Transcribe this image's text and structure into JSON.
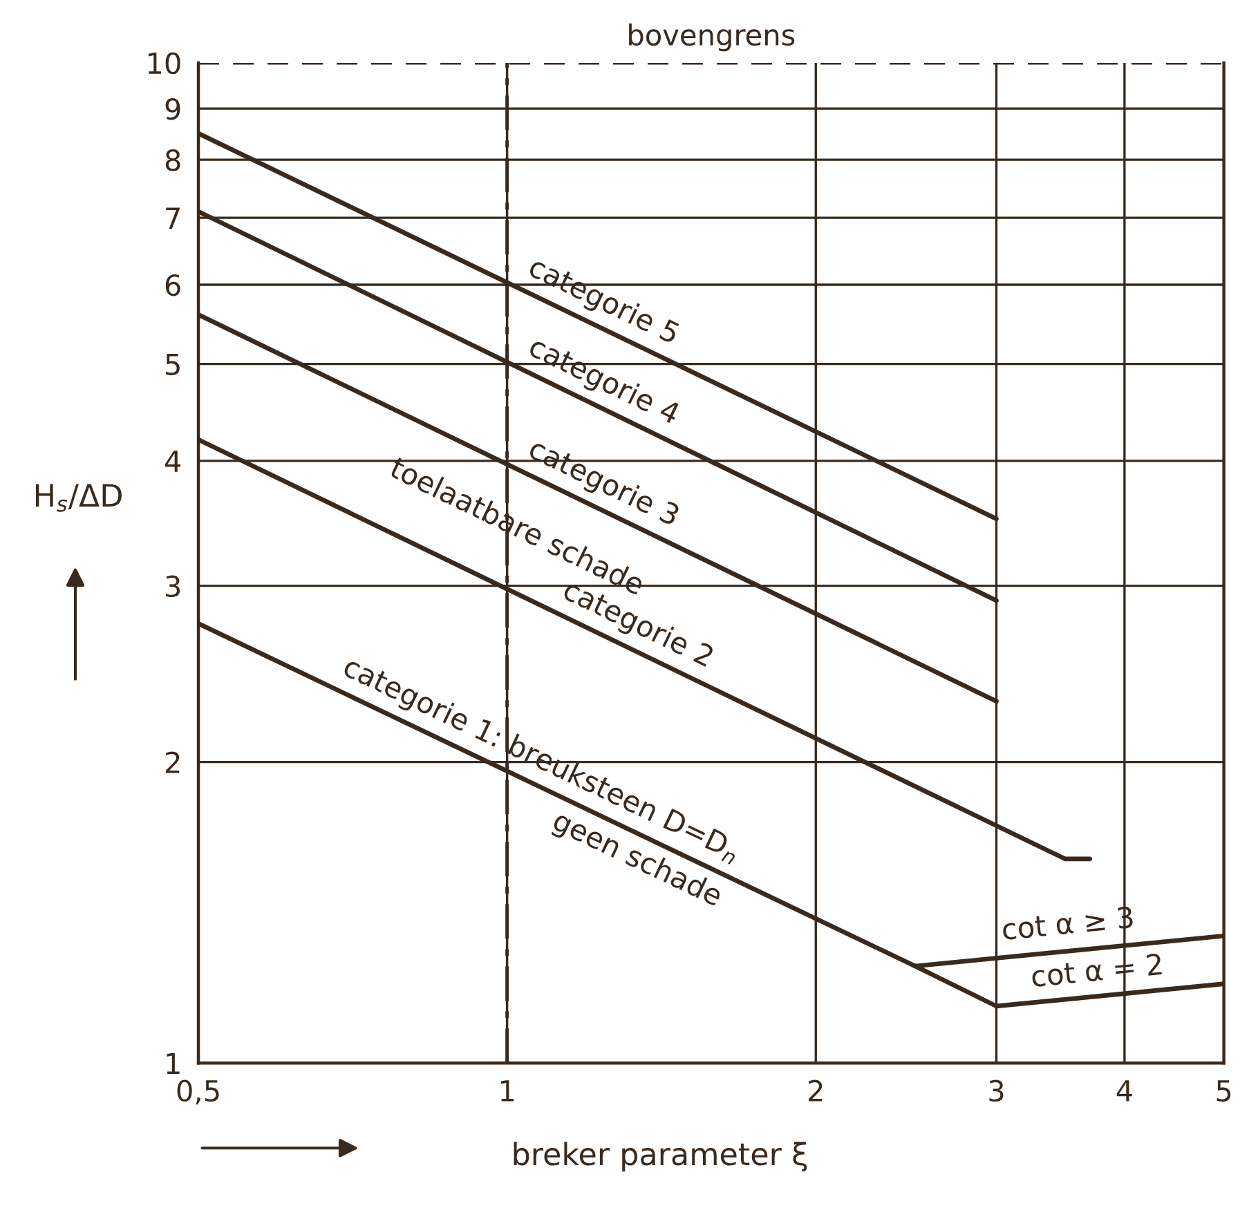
{
  "chart_data": {
    "type": "line",
    "xlabel": "breker parameter ξ",
    "ylabel": "H$_{s}$/ΔD",
    "log": "xy",
    "xlim": [
      0.5,
      5
    ],
    "ylim": [
      1,
      10
    ],
    "xticks": [
      {
        "value": 0.5,
        "label": "0,5"
      },
      1,
      2,
      3,
      4,
      5
    ],
    "yticks": [
      1,
      2,
      3,
      4,
      5,
      6,
      7,
      8,
      9,
      10
    ],
    "grid": true,
    "marker": "none",
    "line_style": "solid",
    "legend": false,
    "series": [
      {
        "name": "categorie 5",
        "color": "#3a2a1e",
        "x": [
          0.5,
          3
        ],
        "values": [
          8.5,
          3.5
        ]
      },
      {
        "name": "categorie 4",
        "color": "#3a2a1e",
        "x": [
          0.5,
          3
        ],
        "values": [
          7.1,
          2.9
        ]
      },
      {
        "name": "categorie 3",
        "color": "#3a2a1e",
        "x": [
          0.5,
          3
        ],
        "values": [
          5.6,
          2.3
        ]
      },
      {
        "name": "categorie 2",
        "color": "#3a2a1e",
        "x": [
          0.5,
          3.5,
          3.7
        ],
        "values": [
          4.2,
          1.6,
          1.6
        ]
      },
      {
        "name": "categorie 1: breuksteen D=D$_{n}$",
        "color": "#3a2a1e",
        "x": [
          0.5,
          2.5,
          3,
          5
        ],
        "values": [
          2.75,
          1.25,
          1.14,
          1.2
        ]
      },
      {
        "name": "cot α ≥ 3",
        "color": "#3a2a1e",
        "x": [
          2.5,
          5
        ],
        "values": [
          1.25,
          1.34
        ]
      }
    ],
    "annotations": [
      "toelaatbare schade",
      "geen schade",
      "cot α = 2"
    ],
    "ref_lines": [
      {
        "axis": "y",
        "value": 10,
        "label": "bovengrens",
        "line_style": "dashed",
        "color": "#3a2a1e"
      },
      {
        "axis": "x",
        "value": 1,
        "line_style": "dashdot",
        "color": "#3a2a1e"
      }
    ]
  }
}
